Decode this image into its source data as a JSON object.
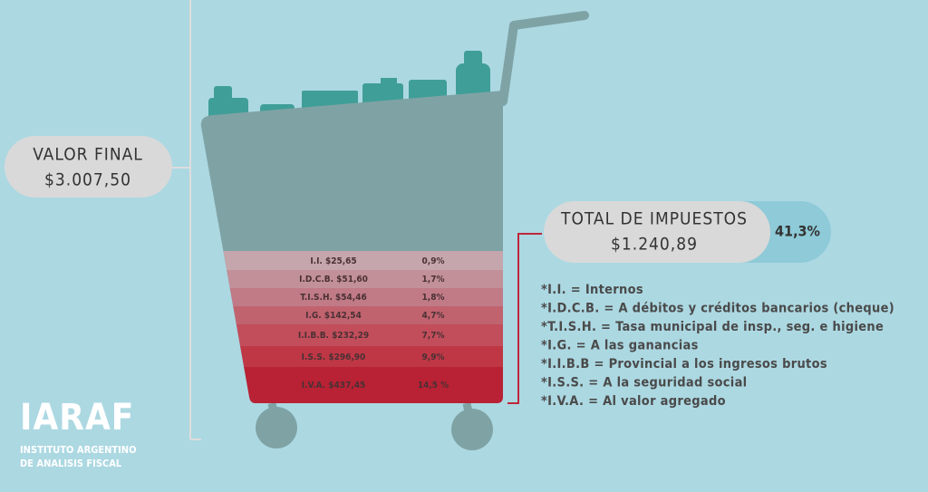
{
  "valor_final": {
    "label": "VALOR FINAL",
    "amount": "$3.007,50"
  },
  "total_impuestos": {
    "label": "TOTAL DE IMPUESTOS",
    "amount": "$1.240,89",
    "percent": "41,3%"
  },
  "rows": [
    {
      "label": "I.I. $25,65",
      "percent": "0,9%"
    },
    {
      "label": "I.D.C.B. $51,60",
      "percent": "1,7%"
    },
    {
      "label": "T.I.S.H. $54,46",
      "percent": "1,8%"
    },
    {
      "label": "I.G. $142,54",
      "percent": "4,7%"
    },
    {
      "label": "I.I.B.B. $232,29",
      "percent": "7,7%"
    },
    {
      "label": "I.S.S. $296,90",
      "percent": "9,9%"
    },
    {
      "label": "I.V.A. $437,45",
      "percent": "14,5 %"
    }
  ],
  "legend": [
    "*I.I. = Internos",
    "*I.D.C.B. = A débitos y créditos bancarios (cheque)",
    "*T.I.S.H. = Tasa municipal de insp., seg. e higiene",
    "*I.G. = A las ganancias",
    "*I.I.B.B = Provincial a los ingresos brutos",
    "*I.S.S. = A la seguridad social",
    "*I.V.A. = Al valor agregado"
  ],
  "logo": {
    "name": "IARAF",
    "line1": "INSTITUTO ARGENTINO",
    "line2": "DE ANALISIS FISCAL"
  }
}
